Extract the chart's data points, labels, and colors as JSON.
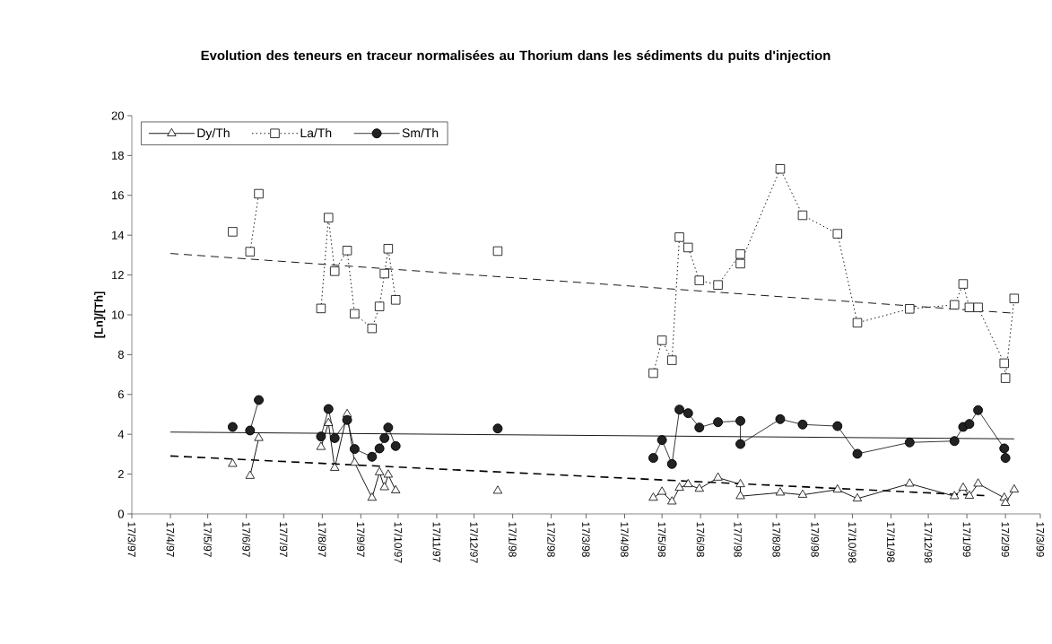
{
  "chart_data": {
    "type": "line",
    "title": "Evolution des teneurs en traceur normalisées au Thorium dans les sédiments du puits d'injection",
    "ylabel": "[Ln]/[Th]",
    "x": [
      "1997-06-06",
      "1997-06-13",
      "1997-06-20",
      "1997-06-27",
      "1997-07-20",
      "1997-08-16",
      "1997-08-22",
      "1997-08-27",
      "1997-09-06",
      "1997-09-12",
      "1997-09-26",
      "1997-10-02",
      "1997-10-06",
      "1997-10-09",
      "1997-10-15",
      "1997-11-20",
      "1998-01-05",
      "1998-03-01",
      "1998-05-10",
      "1998-05-17",
      "1998-05-25",
      "1998-05-31",
      "1998-06-07",
      "1998-06-16",
      "1998-07-01",
      "1998-07-19",
      "1998-07-19",
      "1998-08-20",
      "1998-09-07",
      "1998-10-05",
      "1998-10-21",
      "1998-12-02",
      "1999-01-07",
      "1999-01-14",
      "1999-01-19",
      "1999-01-26",
      "1999-02-16",
      "1999-02-17",
      "1999-02-24"
    ],
    "series": [
      {
        "name": "Dy/Th",
        "color": "#000000",
        "marker": "triangle",
        "line_style": "solid",
        "values": [
          2.51,
          null,
          1.91,
          3.81,
          null,
          3.36,
          4.56,
          2.31,
          5.01,
          2.57,
          0.81,
          2.09,
          1.34,
          1.97,
          1.18,
          null,
          1.16,
          null,
          0.81,
          1.11,
          0.62,
          1.31,
          1.49,
          1.26,
          1.82,
          1.49,
          0.89,
          1.07,
          0.96,
          1.22,
          0.77,
          1.52,
          0.89,
          1.31,
          0.91,
          1.52,
          0.81,
          0.55,
          1.22
        ]
      },
      {
        "name": "La/Th",
        "color": "#000000",
        "marker": "square",
        "line_style": "dotted",
        "values": [
          14.17,
          null,
          13.17,
          16.08,
          null,
          10.32,
          14.88,
          12.19,
          13.23,
          10.05,
          9.32,
          10.42,
          12.07,
          13.32,
          10.75,
          null,
          13.2,
          null,
          7.07,
          8.72,
          7.72,
          13.9,
          13.38,
          11.73,
          11.5,
          13.05,
          12.57,
          17.33,
          15.0,
          14.07,
          9.6,
          10.3,
          10.5,
          11.55,
          10.37,
          10.37,
          7.57,
          6.82,
          10.82
        ]
      },
      {
        "name": "Sm/Th",
        "color": "#222222",
        "marker": "circle",
        "line_style": "solid",
        "values": [
          4.37,
          null,
          4.19,
          5.72,
          null,
          3.89,
          5.27,
          3.81,
          4.72,
          3.26,
          2.87,
          3.29,
          3.81,
          4.34,
          3.41,
          null,
          4.29,
          null,
          2.81,
          3.71,
          2.51,
          5.24,
          5.06,
          4.34,
          4.61,
          4.67,
          3.51,
          4.76,
          4.49,
          4.41,
          3.02,
          3.59,
          3.66,
          4.37,
          4.52,
          5.21,
          3.29,
          2.81,
          null
        ]
      },
      {
        "type": "line",
        "color": "#000000",
        "marker": "none",
        "line_style": "dashed",
        "x": [
          "1997-04-17",
          "1999-01-31"
        ],
        "values": [
          2.91,
          0.92
        ]
      },
      {
        "type": "line",
        "color": "#000000",
        "marker": "none",
        "line_style": "dashed",
        "x": [
          "1997-04-17",
          "1999-02-24"
        ],
        "values": [
          13.08,
          10.08
        ]
      },
      {
        "type": "line",
        "color": "#000000",
        "marker": "none",
        "line_style": "solid",
        "x": [
          "1997-04-17",
          "1999-02-24"
        ],
        "values": [
          4.11,
          3.77
        ]
      }
    ],
    "xlim": [
      "1997-03-17",
      "1999-03-17"
    ],
    "xticks": [
      {
        "value": "1997-03-17",
        "label": "17/3/97"
      },
      {
        "value": "1997-04-17",
        "label": "17/4/97"
      },
      {
        "value": "1997-05-17",
        "label": "17/5/97"
      },
      {
        "value": "1997-06-17",
        "label": "17/6/97"
      },
      {
        "value": "1997-07-17",
        "label": "17/7/97"
      },
      {
        "value": "1997-08-17",
        "label": "17/8/97"
      },
      {
        "value": "1997-09-17",
        "label": "17/9/97"
      },
      {
        "value": "1997-10-17",
        "label": "17/10/97"
      },
      {
        "value": "1997-11-17",
        "label": "17/11/97"
      },
      {
        "value": "1997-12-17",
        "label": "17/12/97"
      },
      {
        "value": "1998-01-17",
        "label": "17/1/98"
      },
      {
        "value": "1998-02-17",
        "label": "17/2/98"
      },
      {
        "value": "1998-03-17",
        "label": "17/3/98"
      },
      {
        "value": "1998-04-17",
        "label": "17/4/98"
      },
      {
        "value": "1998-05-17",
        "label": "17/5/98"
      },
      {
        "value": "1998-06-17",
        "label": "17/6/98"
      },
      {
        "value": "1998-07-17",
        "label": "17/7/98"
      },
      {
        "value": "1998-08-17",
        "label": "17/8/98"
      },
      {
        "value": "1998-09-17",
        "label": "17/9/98"
      },
      {
        "value": "1998-10-17",
        "label": "17/10/98"
      },
      {
        "value": "1998-11-17",
        "label": "17/11/98"
      },
      {
        "value": "1998-12-17",
        "label": "17/12/98"
      },
      {
        "value": "1999-01-17",
        "label": "17/1/99"
      },
      {
        "value": "1999-02-17",
        "label": "17/2/99"
      },
      {
        "value": "1999-03-17",
        "label": "17/3/99"
      }
    ],
    "ylim": [
      0,
      20
    ],
    "yticks": [
      0,
      2,
      4,
      6,
      8,
      10,
      12,
      14,
      16,
      18,
      20
    ],
    "legend": "top left",
    "grid": false
  }
}
